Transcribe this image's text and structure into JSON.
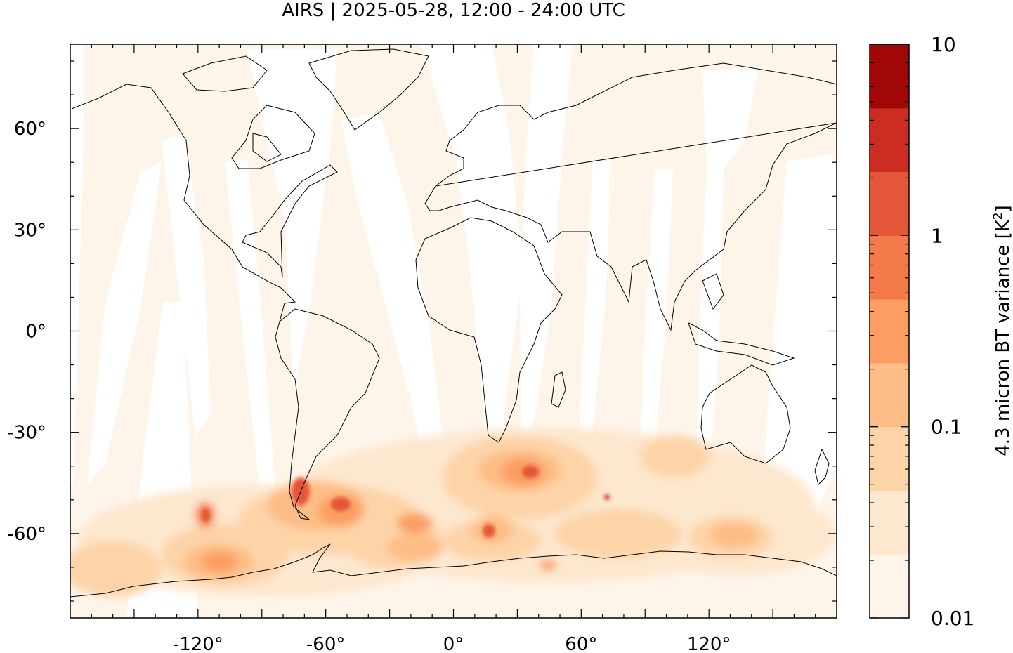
{
  "title": "AIRS | 2025-05-28, 12:00 - 24:00 UTC",
  "map": {
    "lon_range": [
      -180,
      180
    ],
    "lat_range": [
      -85,
      85
    ],
    "x_tick_labels": [
      {
        "lon": -120,
        "text": "-120°"
      },
      {
        "lon": -60,
        "text": "-60°"
      },
      {
        "lon": 0,
        "text": "0°"
      },
      {
        "lon": 60,
        "text": "60°"
      },
      {
        "lon": 120,
        "text": "120°"
      }
    ],
    "y_tick_labels": [
      {
        "lat": 60,
        "text": "60°"
      },
      {
        "lat": 30,
        "text": "30°"
      },
      {
        "lat": 0,
        "text": "0°"
      },
      {
        "lat": -30,
        "text": "-30°"
      },
      {
        "lat": -60,
        "text": "-60°"
      }
    ],
    "background_fill": "#fef5ea",
    "gap_color": "#ffffff",
    "coastline_color": "#000000"
  },
  "colorbar": {
    "label_main": "4.3 micron BT variance [K",
    "label_sup": "2",
    "label_end": "]",
    "scale": "log",
    "range": [
      0.01,
      10
    ],
    "tick_labels": [
      {
        "value": 10,
        "text": "10"
      },
      {
        "value": 1,
        "text": "1"
      },
      {
        "value": 0.1,
        "text": "0.1"
      },
      {
        "value": 0.01,
        "text": "0.01"
      }
    ],
    "colors": [
      "#fef5ea",
      "#fde7cf",
      "#fdd4a8",
      "#fdbd86",
      "#fc9e64",
      "#f37b49",
      "#e35638",
      "#cc2d22",
      "#a10707"
    ]
  },
  "chart_data": {
    "type": "heatmap",
    "title": "AIRS | 2025-05-28, 12:00 - 24:00 UTC",
    "xlabel": "",
    "ylabel": "",
    "x_range": [
      -180,
      180
    ],
    "y_range": [
      -85,
      85
    ],
    "value_label": "4.3 micron BT variance [K^2]",
    "value_scale": "log",
    "value_range": [
      0.01,
      10
    ],
    "notable_regions": [
      {
        "lon": -72,
        "lat": -52,
        "value": 1.5
      },
      {
        "lon": -50,
        "lat": -56,
        "value": 1.0
      },
      {
        "lon": -112,
        "lat": -55,
        "value": 0.8
      },
      {
        "lon": 30,
        "lat": -42,
        "value": 1.0
      },
      {
        "lon": 15,
        "lat": -60,
        "value": 1.5
      },
      {
        "lon": -118,
        "lat": -68,
        "value": 0.7
      },
      {
        "lon": 130,
        "lat": -62,
        "value": 0.5
      }
    ]
  }
}
